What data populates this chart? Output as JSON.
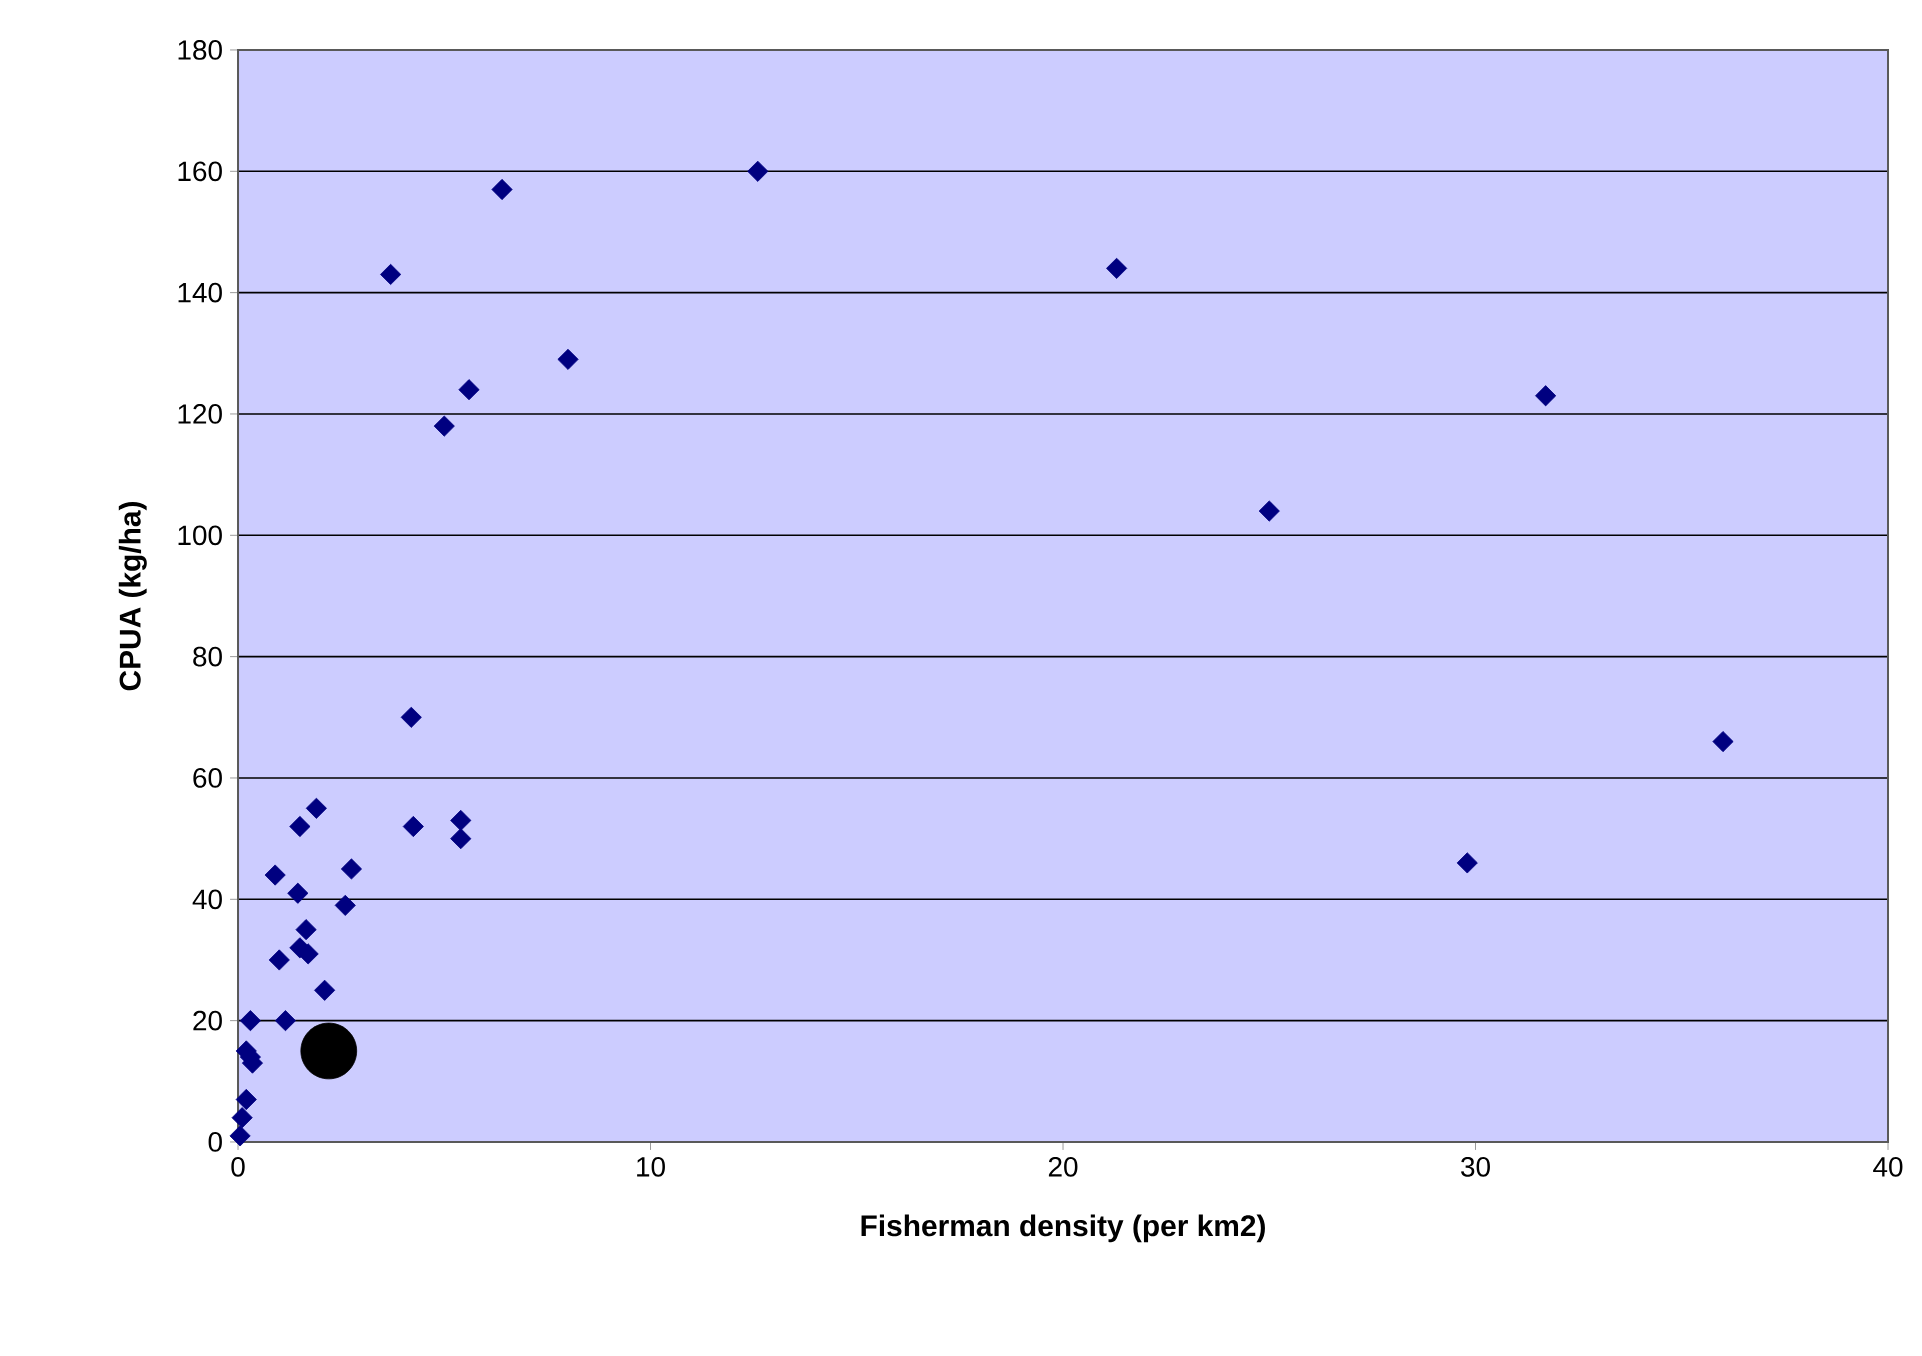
{
  "chart_data": {
    "type": "scatter",
    "xlabel": "Fisherman density (per km2)",
    "ylabel": "CPUA (kg/ha)",
    "xlim": [
      0,
      40
    ],
    "ylim": [
      0,
      180
    ],
    "xticks": [
      0,
      10,
      20,
      30,
      40
    ],
    "yticks": [
      0,
      20,
      40,
      60,
      80,
      100,
      120,
      140,
      160,
      180
    ],
    "grid": "y",
    "marker": "diamond",
    "series": [
      {
        "color": "#000080",
        "x": [
          12.6,
          6.4,
          3.7,
          8.0,
          5.6,
          5.0,
          4.2,
          4.25,
          5.4,
          5.4,
          21.3,
          25.0,
          31.7,
          29.8,
          36.0,
          1.9,
          1.5,
          0.9,
          2.75,
          1.45,
          2.6,
          1.65,
          1.5,
          1.7,
          1.0,
          2.1,
          0.3,
          1.15,
          0.2,
          0.35,
          0.3,
          0.2,
          0.1,
          0.05
        ],
        "values": [
          160,
          157,
          143,
          129,
          124,
          118,
          70,
          52,
          53,
          50,
          144,
          104,
          123,
          46,
          66,
          55,
          52,
          44,
          45,
          41,
          39,
          35,
          32,
          31,
          30,
          25,
          20,
          20,
          15,
          13,
          14,
          7,
          4,
          1
        ]
      },
      {
        "color": "#000000",
        "marker": "circle",
        "x": [
          2.2
        ],
        "values": [
          15
        ]
      }
    ]
  }
}
